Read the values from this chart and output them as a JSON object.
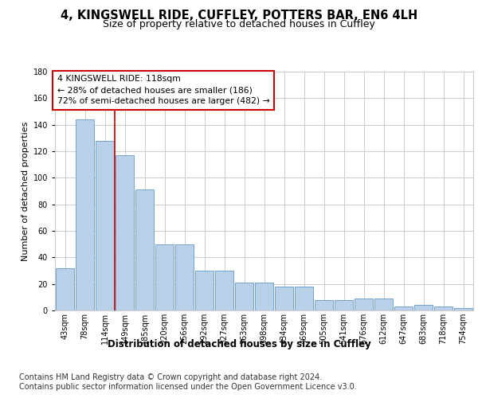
{
  "title1": "4, KINGSWELL RIDE, CUFFLEY, POTTERS BAR, EN6 4LH",
  "title2": "Size of property relative to detached houses in Cuffley",
  "xlabel": "Distribution of detached houses by size in Cuffley",
  "ylabel": "Number of detached properties",
  "categories": [
    "43sqm",
    "78sqm",
    "114sqm",
    "149sqm",
    "185sqm",
    "220sqm",
    "256sqm",
    "292sqm",
    "327sqm",
    "363sqm",
    "398sqm",
    "434sqm",
    "469sqm",
    "505sqm",
    "541sqm",
    "576sqm",
    "612sqm",
    "647sqm",
    "683sqm",
    "718sqm",
    "754sqm"
  ],
  "values": [
    32,
    144,
    128,
    117,
    91,
    50,
    50,
    30,
    30,
    21,
    21,
    18,
    18,
    8,
    8,
    9,
    9,
    3,
    4,
    3,
    2
  ],
  "bar_color": "#b8d0e8",
  "bar_edge_color": "#6699cc",
  "subject_sqm": 118,
  "pct_smaller": 28,
  "n_smaller": 186,
  "pct_larger_semi": 72,
  "n_larger_semi": 482,
  "annotation_box_color": "#ffffff",
  "annotation_box_edge": "#cc0000",
  "vline_color": "#cc0000",
  "ylim": [
    0,
    180
  ],
  "yticks": [
    0,
    20,
    40,
    60,
    80,
    100,
    120,
    140,
    160,
    180
  ],
  "footer1": "Contains HM Land Registry data © Crown copyright and database right 2024.",
  "footer2": "Contains public sector information licensed under the Open Government Licence v3.0.",
  "bg_color": "#ffffff",
  "grid_color": "#cccccc",
  "title1_fontsize": 10.5,
  "title2_fontsize": 9,
  "annotation_fontsize": 7.8,
  "xlabel_fontsize": 8.5,
  "ylabel_fontsize": 8,
  "footer_fontsize": 7,
  "tick_fontsize": 7
}
